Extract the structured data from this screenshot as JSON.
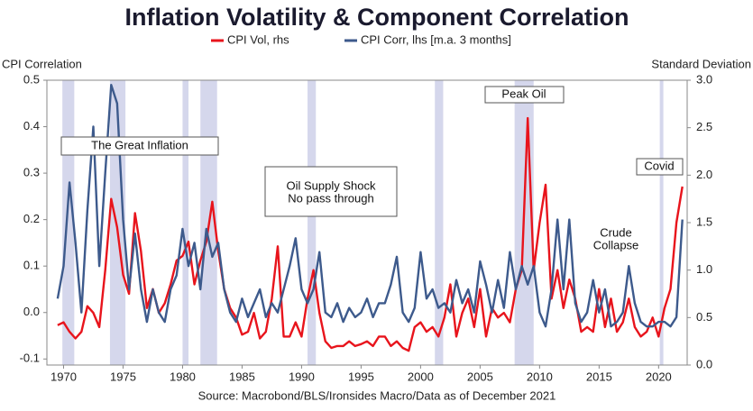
{
  "chart_data": {
    "type": "line",
    "title": "Inflation Volatility & Component Correlation",
    "ylabel": "CPI Correlation",
    "y2label": "Standard Deviation",
    "source": "Source: Macrobond/BLS/Ironsides Macro/Data as of December 2021",
    "xlim": [
      1968.6,
      2022.4
    ],
    "xticks": [
      1970,
      1975,
      1980,
      1985,
      1990,
      1995,
      2000,
      2005,
      2010,
      2015,
      2020
    ],
    "ylim": [
      -0.113,
      0.5
    ],
    "yticks": [
      -0.1,
      {
        "value": 0,
        "label": "0.0"
      },
      0.1,
      0.2,
      0.3,
      0.4,
      0.5
    ],
    "y2lim": [
      0,
      3.0
    ],
    "y2ticks": [
      {
        "value": 0,
        "label": "0.0"
      },
      0.5,
      {
        "value": 1,
        "label": "1.0"
      },
      1.5,
      {
        "value": 2,
        "label": "2.0"
      },
      2.5,
      {
        "value": 3,
        "label": "3.0"
      }
    ],
    "recession_color": "#d5d7ec",
    "recessions": [
      [
        1969.9,
        1970.9
      ],
      [
        1973.9,
        1975.2
      ],
      [
        1980.0,
        1980.5
      ],
      [
        1981.5,
        1982.9
      ],
      [
        1990.5,
        1991.2
      ],
      [
        2001.2,
        2001.9
      ],
      [
        2007.9,
        2009.5
      ],
      [
        2020.1,
        2020.4
      ]
    ],
    "annotations": [
      {
        "lines": [
          "The Great Inflation"
        ]
      },
      {
        "lines": [
          "Oil Supply Shock",
          "No pass through"
        ]
      },
      {
        "lines": [
          "Peak Oil"
        ]
      },
      {
        "lines": [
          "Crude",
          "Collapse"
        ]
      },
      {
        "lines": [
          "Covid"
        ]
      }
    ],
    "x": [
      1969.5,
      1970,
      1970.5,
      1971,
      1971.5,
      1972,
      1972.5,
      1973,
      1973.5,
      1974,
      1974.5,
      1975,
      1975.5,
      1976,
      1976.5,
      1977,
      1977.5,
      1978,
      1978.5,
      1979,
      1979.5,
      1980,
      1980.5,
      1981,
      1981.5,
      1982,
      1982.5,
      1983,
      1983.5,
      1984,
      1984.5,
      1985,
      1985.5,
      1986,
      1986.5,
      1987,
      1987.5,
      1988,
      1988.5,
      1989,
      1989.5,
      1990,
      1990.5,
      1991,
      1991.5,
      1992,
      1992.5,
      1993,
      1993.5,
      1994,
      1994.5,
      1995,
      1995.5,
      1996,
      1996.5,
      1997,
      1997.5,
      1998,
      1998.5,
      1999,
      1999.5,
      2000,
      2000.5,
      2001,
      2001.5,
      2002,
      2002.5,
      2003,
      2003.5,
      2004,
      2004.5,
      2005,
      2005.5,
      2006,
      2006.5,
      2007,
      2007.5,
      2008,
      2008.5,
      2009,
      2009.5,
      2010,
      2010.5,
      2011,
      2011.5,
      2012,
      2012.5,
      2013,
      2013.5,
      2014,
      2014.5,
      2015,
      2015.5,
      2016,
      2016.5,
      2017,
      2017.5,
      2018,
      2018.5,
      2019,
      2019.5,
      2020,
      2020.5,
      2021,
      2021.5,
      2022
    ],
    "series": [
      {
        "name": "CPI Vol, rhs",
        "color": "#e8141c",
        "axis": "y2",
        "values": [
          0.42,
          0.45,
          0.35,
          0.28,
          0.35,
          0.62,
          0.55,
          0.4,
          1.0,
          1.75,
          1.45,
          0.95,
          0.75,
          1.6,
          1.2,
          0.6,
          0.8,
          0.55,
          0.65,
          0.85,
          1.1,
          1.15,
          1.3,
          0.85,
          1.1,
          1.3,
          1.72,
          1.2,
          0.8,
          0.6,
          0.5,
          0.32,
          0.35,
          0.55,
          0.28,
          0.35,
          0.7,
          1.25,
          0.3,
          0.3,
          0.45,
          0.3,
          0.7,
          1.0,
          0.55,
          0.25,
          0.18,
          0.2,
          0.2,
          0.25,
          0.2,
          0.22,
          0.25,
          0.2,
          0.3,
          0.3,
          0.2,
          0.25,
          0.18,
          0.15,
          0.4,
          0.45,
          0.35,
          0.4,
          0.3,
          0.5,
          0.85,
          0.3,
          0.55,
          0.7,
          0.4,
          0.8,
          0.3,
          0.6,
          0.5,
          0.55,
          0.45,
          0.8,
          1.0,
          2.6,
          1.0,
          1.5,
          1.9,
          0.7,
          1.0,
          0.6,
          0.9,
          0.7,
          0.35,
          0.4,
          0.35,
          0.8,
          0.4,
          0.7,
          0.35,
          0.45,
          0.7,
          0.4,
          0.3,
          0.35,
          0.5,
          0.3,
          0.6,
          0.8,
          1.5,
          1.88
        ]
      },
      {
        "name": "CPI Corr, lhs [m.a. 3 months]",
        "color": "#3d5a8c",
        "values": [
          0.03,
          0.1,
          0.28,
          0.15,
          0.0,
          0.22,
          0.4,
          0.1,
          0.3,
          0.49,
          0.45,
          0.2,
          0.05,
          0.17,
          0.05,
          -0.02,
          0.05,
          0.0,
          -0.02,
          0.05,
          0.08,
          0.18,
          0.1,
          0.15,
          0.05,
          0.18,
          0.12,
          0.15,
          0.05,
          0.0,
          -0.02,
          0.03,
          -0.01,
          0.02,
          0.05,
          -0.01,
          0.02,
          0.0,
          0.05,
          0.1,
          0.16,
          0.05,
          0.02,
          0.05,
          0.13,
          0.0,
          -0.01,
          0.02,
          -0.02,
          0.01,
          -0.01,
          0.0,
          0.03,
          -0.01,
          0.02,
          0.02,
          0.06,
          0.12,
          0.0,
          -0.02,
          0.01,
          0.13,
          0.03,
          0.05,
          0.01,
          0.02,
          0.0,
          0.07,
          0.02,
          0.05,
          0.0,
          0.11,
          0.06,
          0.0,
          0.07,
          0.01,
          0.13,
          0.05,
          0.1,
          0.06,
          0.1,
          0.0,
          -0.03,
          0.05,
          0.2,
          0.05,
          0.2,
          0.02,
          -0.02,
          0.0,
          0.07,
          0.0,
          0.05,
          -0.03,
          -0.02,
          0.0,
          0.1,
          0.02,
          -0.02,
          -0.03,
          -0.03,
          -0.02,
          -0.02,
          -0.03,
          -0.01,
          0.2
        ]
      }
    ]
  }
}
